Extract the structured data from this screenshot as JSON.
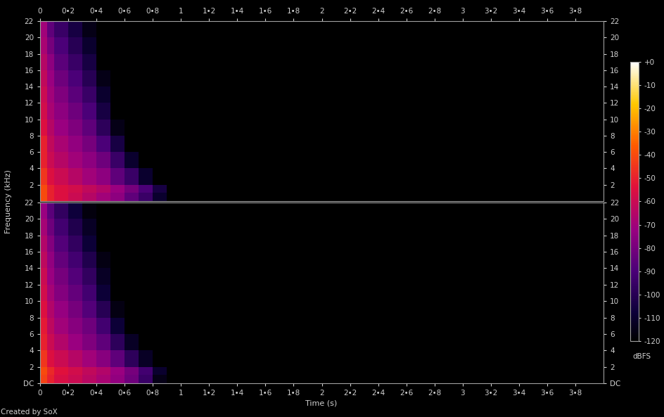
{
  "chart_data": {
    "type": "spectrogram",
    "x_label": "Time (s)",
    "y_label": "Frequency (kHz)",
    "annotations": [
      "Created by SoX"
    ],
    "time_edges": [
      0,
      0.05,
      0.1,
      0.2,
      0.3,
      0.4,
      0.5,
      0.6,
      0.7,
      0.8,
      0.9,
      1.0,
      4.0
    ],
    "frequency_edges": [
      0,
      1,
      2,
      4,
      6,
      8,
      10,
      12,
      14,
      16,
      18,
      20,
      22
    ],
    "xlim": [
      0,
      4.0
    ],
    "xticks": [
      0,
      {
        "value": 0.2,
        "label": "0•2"
      },
      {
        "value": 0.4,
        "label": "0•4"
      },
      {
        "value": 0.6,
        "label": "0•6"
      },
      {
        "value": 0.8,
        "label": "0•8"
      },
      1,
      {
        "value": 1.2,
        "label": "1•2"
      },
      {
        "value": 1.4,
        "label": "1•4"
      },
      {
        "value": 1.6,
        "label": "1•6"
      },
      {
        "value": 1.8,
        "label": "1•8"
      },
      2,
      {
        "value": 2.2,
        "label": "2•2"
      },
      {
        "value": 2.4,
        "label": "2•4"
      },
      {
        "value": 2.6,
        "label": "2•6"
      },
      {
        "value": 2.8,
        "label": "2•8"
      },
      3,
      {
        "value": 3.2,
        "label": "3•2"
      },
      {
        "value": 3.4,
        "label": "3•4"
      },
      {
        "value": 3.6,
        "label": "3•6"
      },
      {
        "value": 3.8,
        "label": "3•8"
      }
    ],
    "ylim": [
      0,
      22
    ],
    "yticks": [
      {
        "value": 0,
        "label": "DC"
      },
      2,
      4,
      6,
      8,
      10,
      12,
      14,
      16,
      18,
      20,
      22
    ],
    "colorbar": {
      "label": "dBFS",
      "range": [
        -120,
        0
      ],
      "ticks": [
        {
          "value": 0,
          "label": "+0"
        },
        -10,
        -20,
        -30,
        -40,
        -50,
        -60,
        -70,
        -80,
        -90,
        -100,
        -110,
        -120
      ]
    },
    "series": [
      {
        "cells": [
          [
            -40,
            -50,
            -55,
            -60,
            -65,
            -70,
            -75,
            -85,
            -95,
            -110,
            -120,
            -120
          ],
          [
            -40,
            -50,
            -55,
            -58,
            -62,
            -66,
            -72,
            -80,
            -90,
            -105,
            -120,
            -120
          ],
          [
            -45,
            -55,
            -60,
            -65,
            -70,
            -75,
            -85,
            -95,
            -110,
            -120,
            -120,
            -120
          ],
          [
            -50,
            -60,
            -65,
            -70,
            -75,
            -82,
            -95,
            -110,
            -120,
            -120,
            -120,
            -120
          ],
          [
            -50,
            -62,
            -68,
            -74,
            -80,
            -90,
            -105,
            -120,
            -120,
            -120,
            -120,
            -120
          ],
          [
            -55,
            -65,
            -72,
            -78,
            -85,
            -98,
            -115,
            -120,
            -120,
            -120,
            -120,
            -120
          ],
          [
            -58,
            -68,
            -75,
            -82,
            -90,
            -105,
            -120,
            -120,
            -120,
            -120,
            -120,
            -120
          ],
          [
            -60,
            -70,
            -78,
            -86,
            -95,
            -110,
            -120,
            -120,
            -120,
            -120,
            -120,
            -120
          ],
          [
            -62,
            -72,
            -82,
            -90,
            -100,
            -115,
            -120,
            -120,
            -120,
            -120,
            -120,
            -120
          ],
          [
            -65,
            -75,
            -86,
            -95,
            -105,
            -120,
            -120,
            -120,
            -120,
            -120,
            -120,
            -120
          ],
          [
            -68,
            -80,
            -90,
            -100,
            -110,
            -120,
            -120,
            -120,
            -120,
            -120,
            -120,
            -120
          ],
          [
            -70,
            -85,
            -95,
            -105,
            -115,
            -120,
            -120,
            -120,
            -120,
            -120,
            -120,
            -120
          ]
        ]
      },
      {
        "cells": [
          [
            -42,
            -50,
            -56,
            -60,
            -64,
            -68,
            -74,
            -82,
            -95,
            -115,
            -120,
            -120
          ],
          [
            -40,
            -48,
            -54,
            -58,
            -62,
            -66,
            -72,
            -80,
            -92,
            -110,
            -120,
            -120
          ],
          [
            -45,
            -55,
            -60,
            -65,
            -70,
            -76,
            -85,
            -98,
            -112,
            -120,
            -120,
            -120
          ],
          [
            -50,
            -60,
            -66,
            -72,
            -78,
            -85,
            -98,
            -112,
            -120,
            -120,
            -120,
            -120
          ],
          [
            -52,
            -63,
            -70,
            -76,
            -82,
            -92,
            -108,
            -120,
            -120,
            -120,
            -120,
            -120
          ],
          [
            -55,
            -66,
            -73,
            -80,
            -88,
            -100,
            -116,
            -120,
            -120,
            -120,
            -120,
            -120
          ],
          [
            -58,
            -69,
            -77,
            -84,
            -92,
            -108,
            -120,
            -120,
            -120,
            -120,
            -120,
            -120
          ],
          [
            -60,
            -72,
            -80,
            -88,
            -97,
            -112,
            -120,
            -120,
            -120,
            -120,
            -120,
            -120
          ],
          [
            -63,
            -74,
            -84,
            -92,
            -102,
            -116,
            -120,
            -120,
            -120,
            -120,
            -120,
            -120
          ],
          [
            -66,
            -77,
            -88,
            -97,
            -108,
            -120,
            -120,
            -120,
            -120,
            -120,
            -120,
            -120
          ],
          [
            -69,
            -82,
            -92,
            -102,
            -112,
            -120,
            -120,
            -120,
            -120,
            -120,
            -120,
            -120
          ],
          [
            -72,
            -86,
            -97,
            -107,
            -117,
            -120,
            -120,
            -120,
            -120,
            -120,
            -120,
            -120
          ]
        ]
      }
    ]
  }
}
